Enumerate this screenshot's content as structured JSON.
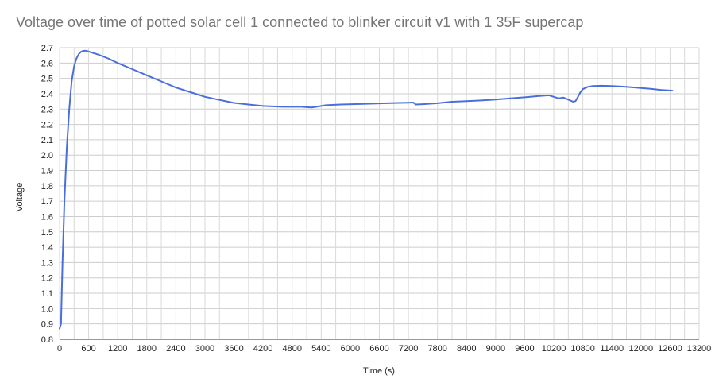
{
  "chart_data": {
    "type": "line",
    "title": "Voltage over time of potted solar cell 1 connected to blinker circuit v1 with 1 35F supercap",
    "xlabel": "Time (s)",
    "ylabel": "Voltage",
    "xlim": [
      0,
      13200
    ],
    "ylim": [
      0.8,
      2.7
    ],
    "xticks": [
      0,
      600,
      1200,
      1800,
      2400,
      3000,
      3600,
      4200,
      4800,
      5400,
      6000,
      6600,
      7200,
      7800,
      8400,
      9000,
      9600,
      10200,
      10800,
      11400,
      12000,
      12600,
      13200
    ],
    "yticks": [
      0.8,
      0.9,
      1.0,
      1.1,
      1.2,
      1.3,
      1.4,
      1.5,
      1.6,
      1.7,
      1.8,
      1.9,
      2.0,
      2.1,
      2.2,
      2.3,
      2.4,
      2.5,
      2.6,
      2.7
    ],
    "grid": true,
    "line_color": "#4a6fdc",
    "series": [
      {
        "x": [
          0,
          30,
          60,
          100,
          150,
          200,
          250,
          300,
          350,
          400,
          450,
          500,
          550,
          650,
          800,
          1000,
          1200,
          1500,
          1800,
          2100,
          2400,
          2700,
          3000,
          3300,
          3600,
          3900,
          4200,
          4600,
          5000,
          5100,
          5200,
          5300,
          5500,
          5800,
          6200,
          6600,
          7000,
          7200,
          7300,
          7350,
          7500,
          7800,
          8100,
          8400,
          8700,
          9000,
          9300,
          9600,
          9900,
          10100,
          10200,
          10300,
          10400,
          10500,
          10600,
          10650,
          10700,
          10750,
          10800,
          10900,
          11000,
          11200,
          11400,
          11600,
          11800,
          12000,
          12200,
          12400,
          12650
        ],
        "y": [
          0.87,
          0.9,
          1.3,
          1.7,
          2.05,
          2.3,
          2.48,
          2.58,
          2.63,
          2.66,
          2.675,
          2.68,
          2.68,
          2.67,
          2.655,
          2.63,
          2.6,
          2.56,
          2.52,
          2.48,
          2.44,
          2.41,
          2.38,
          2.36,
          2.34,
          2.33,
          2.32,
          2.315,
          2.315,
          2.312,
          2.31,
          2.315,
          2.325,
          2.33,
          2.333,
          2.337,
          2.34,
          2.342,
          2.343,
          2.33,
          2.332,
          2.338,
          2.348,
          2.352,
          2.356,
          2.362,
          2.37,
          2.377,
          2.385,
          2.39,
          2.38,
          2.37,
          2.375,
          2.362,
          2.348,
          2.352,
          2.38,
          2.41,
          2.43,
          2.445,
          2.45,
          2.452,
          2.45,
          2.447,
          2.442,
          2.437,
          2.432,
          2.425,
          2.42
        ]
      }
    ]
  }
}
